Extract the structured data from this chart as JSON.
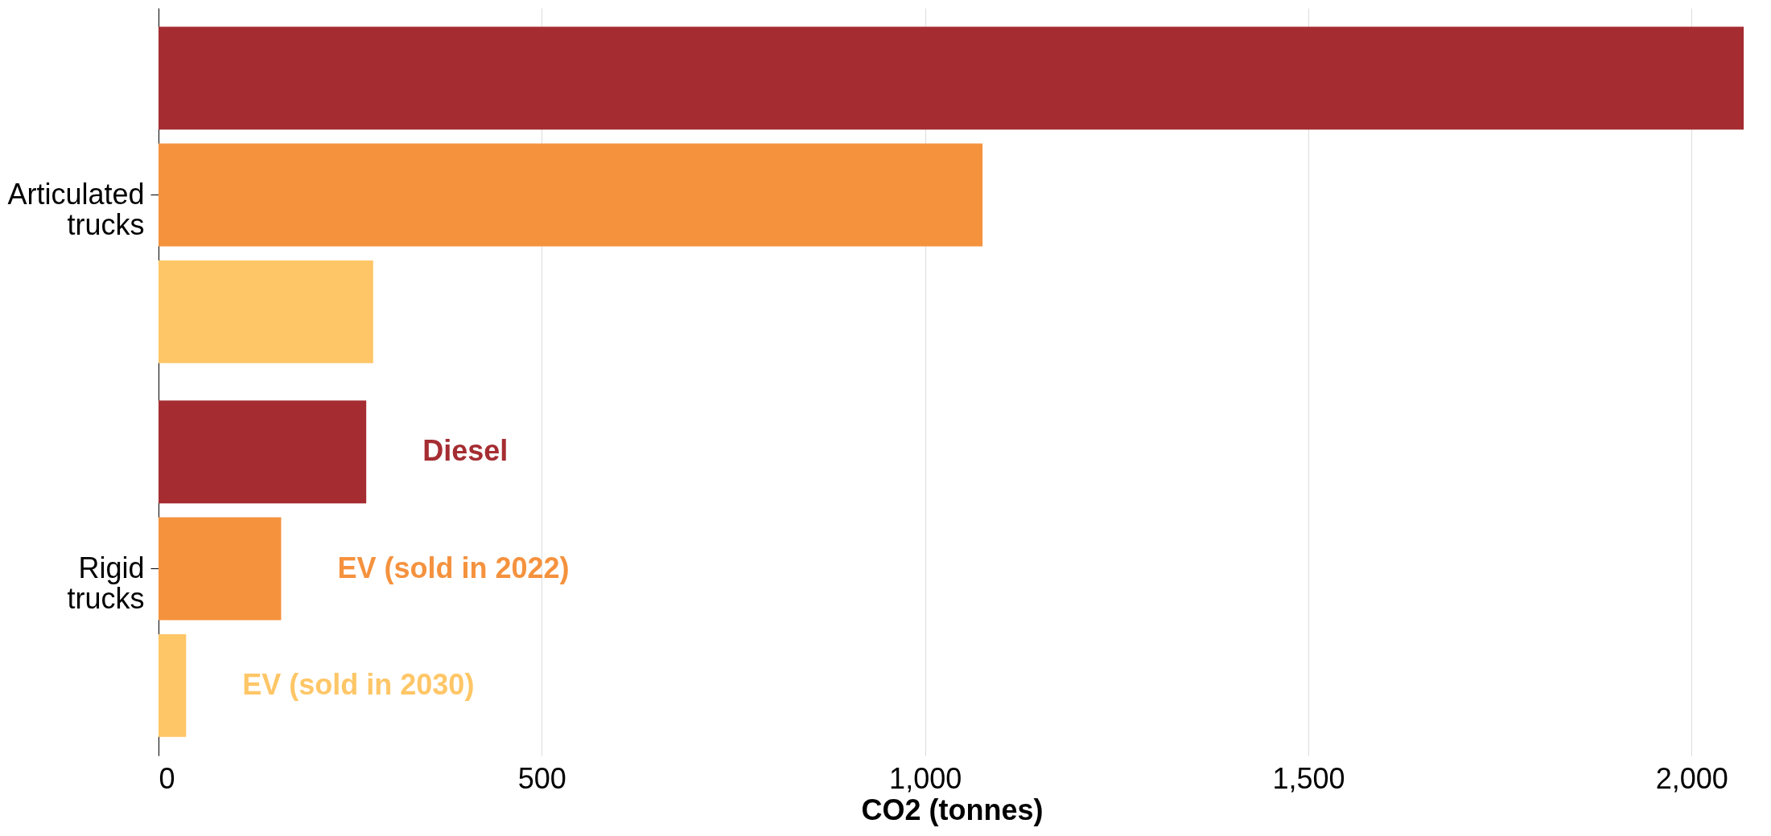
{
  "chart_data": {
    "type": "bar",
    "orientation": "horizontal",
    "xlabel": "CO2 (tonnes)",
    "categories": [
      "Articulated trucks",
      "Rigid trucks"
    ],
    "series": [
      {
        "name": "Diesel",
        "color": "#a52d32",
        "values": [
          2068,
          271
        ]
      },
      {
        "name": "EV (sold in 2022)",
        "color": "#f5923e",
        "values": [
          1075,
          160
        ]
      },
      {
        "name": "EV (sold in 2030)",
        "color": "#ffc667",
        "values": [
          280,
          36
        ]
      }
    ],
    "xlim": [
      0,
      2070
    ],
    "xticks": [
      0,
      500,
      {
        "value": 1000,
        "label": "1,000"
      },
      {
        "value": 1500,
        "label": "1,500"
      },
      {
        "value": 2000,
        "label": "2,000"
      }
    ],
    "grid": "x",
    "legend": false
  }
}
